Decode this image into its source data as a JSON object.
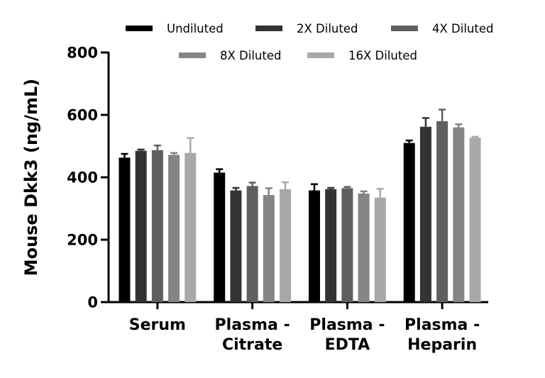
{
  "chart_data": {
    "type": "bar",
    "title": "",
    "xlabel": "",
    "ylabel": "Mouse Dkk3 (ng/mL)",
    "ylim": [
      0,
      800
    ],
    "yticks": [
      0,
      200,
      400,
      600,
      800
    ],
    "grid": false,
    "legend_position": "top",
    "categories": [
      [
        "Serum"
      ],
      [
        "Plasma -",
        "Citrate"
      ],
      [
        "Plasma -",
        "EDTA"
      ],
      [
        "Plasma -",
        "Heparin"
      ]
    ],
    "series": [
      {
        "name": "Undiluted",
        "color": "#000000",
        "values": [
          463,
          415,
          358,
          510
        ],
        "errors": [
          12,
          11,
          20,
          8
        ]
      },
      {
        "name": "2X Diluted",
        "color": "#333333",
        "values": [
          485,
          358,
          362,
          562
        ],
        "errors": [
          4,
          8,
          4,
          28
        ]
      },
      {
        "name": "4X Diluted",
        "color": "#5f5f5f",
        "values": [
          487,
          372,
          365,
          580
        ],
        "errors": [
          15,
          11,
          4,
          37
        ]
      },
      {
        "name": "8X Diluted",
        "color": "#858585",
        "values": [
          472,
          343,
          348,
          560
        ],
        "errors": [
          6,
          22,
          7,
          10
        ]
      },
      {
        "name": "16X Diluted",
        "color": "#a8a8a8",
        "values": [
          478,
          362,
          335,
          527
        ],
        "errors": [
          48,
          22,
          28,
          3
        ]
      }
    ]
  }
}
